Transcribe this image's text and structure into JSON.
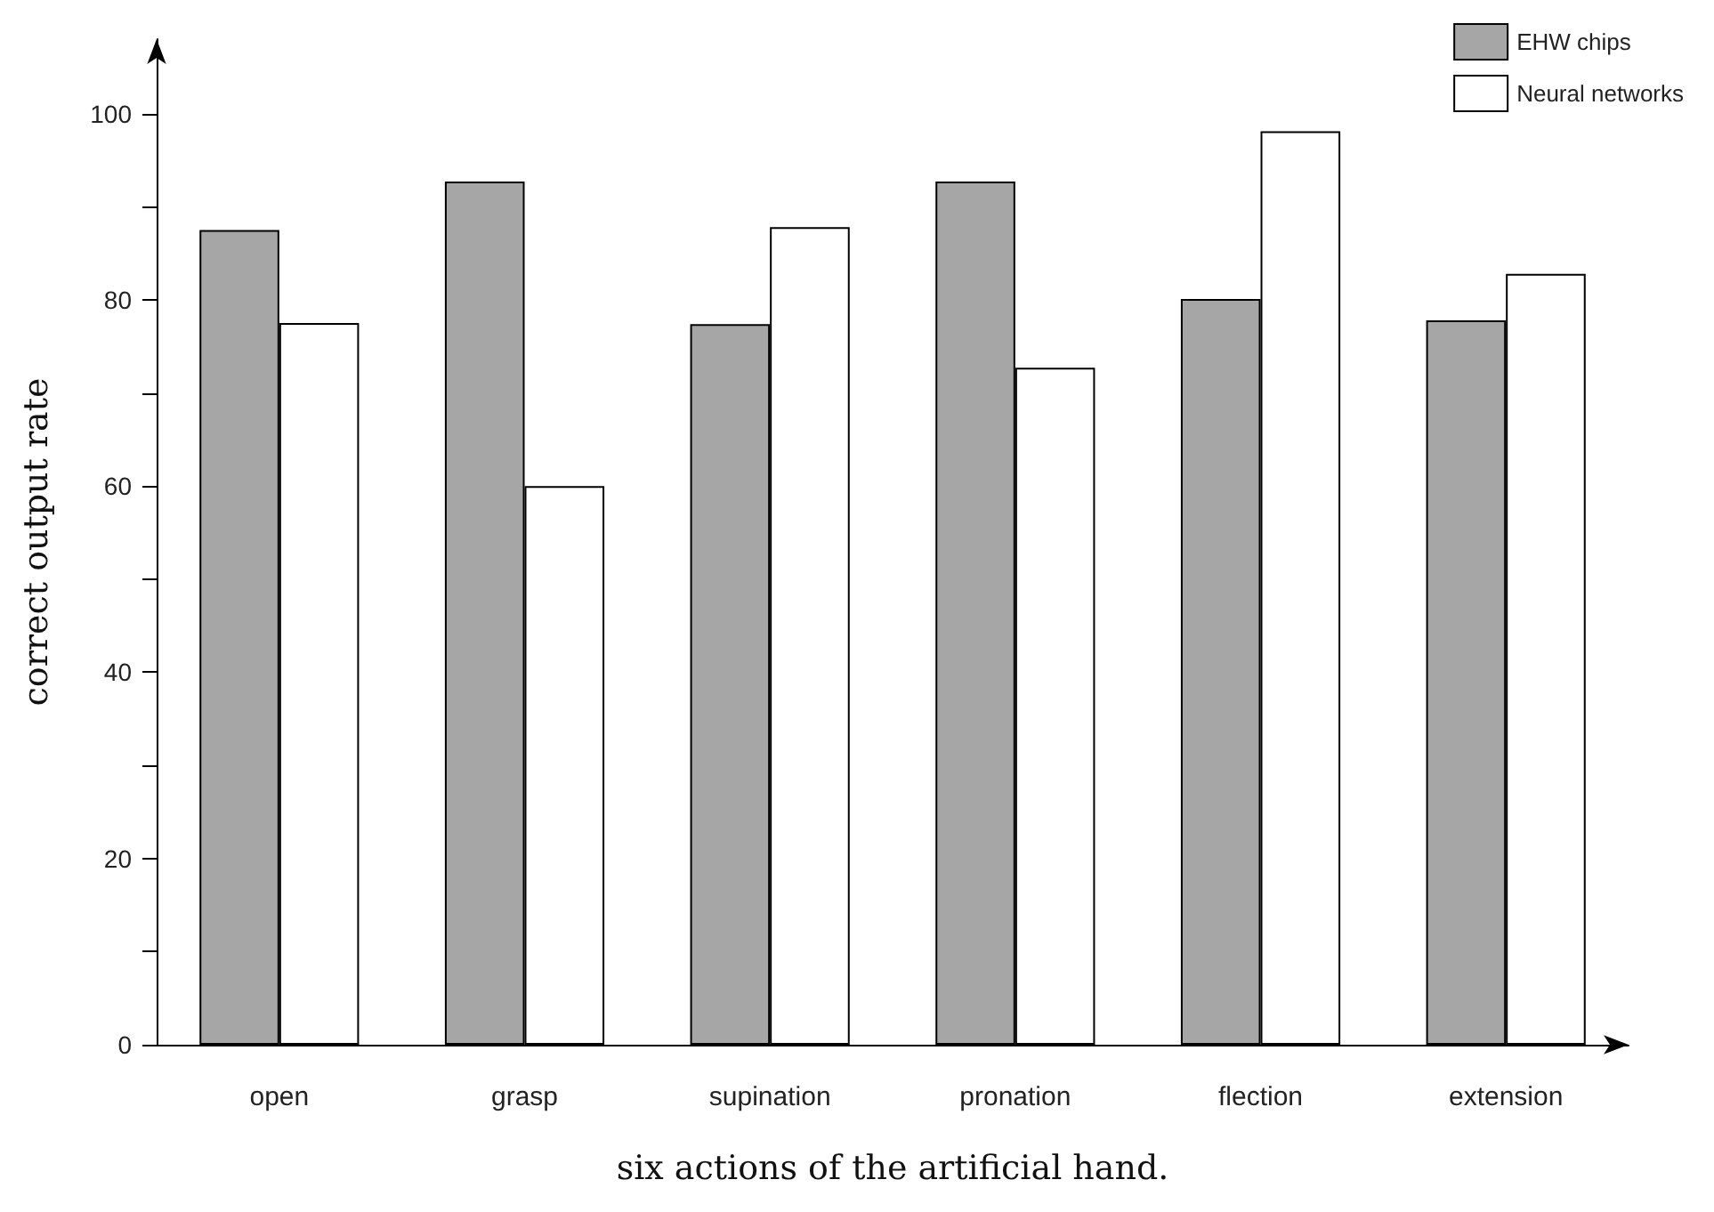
{
  "chart_data": {
    "type": "bar",
    "xlabel": "six actions of the artificial hand.",
    "ylabel": "correct output rate",
    "categories": [
      "open",
      "grasp",
      "supination",
      "pronation",
      "flection",
      "extension"
    ],
    "series": [
      {
        "name": "EHW chips",
        "color": "#a6a6a6",
        "values": [
          87.5,
          92.7,
          77.4,
          92.7,
          80.1,
          77.8
        ]
      },
      {
        "name": "Neural networks",
        "color": "#ffffff",
        "values": [
          77.5,
          60,
          87.8,
          72.7,
          98.1,
          82.8
        ]
      }
    ],
    "ylim": [
      0,
      108
    ],
    "yticks": [
      0,
      {
        "value": 10,
        "label": null
      },
      20,
      {
        "value": 30,
        "label": null
      },
      40,
      {
        "value": 50,
        "label": null
      },
      60,
      {
        "value": 70,
        "label": null
      },
      80,
      {
        "value": 90,
        "label": null
      },
      100
    ],
    "grid": false,
    "legend": "top right"
  }
}
